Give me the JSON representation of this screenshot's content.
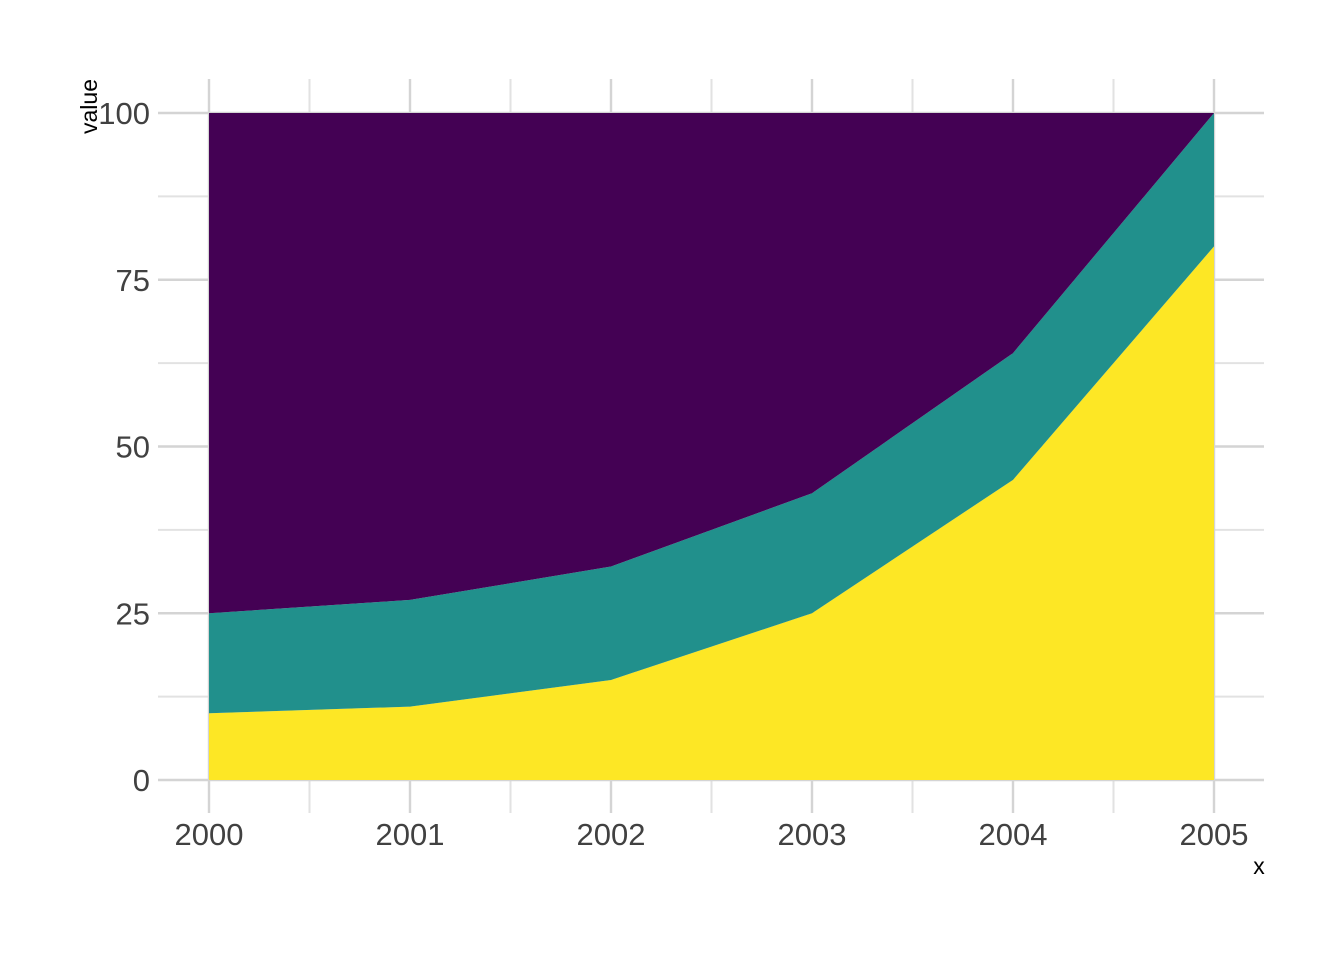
{
  "page": {
    "background": "#ffffff"
  },
  "chart_data": {
    "type": "area",
    "stacking": "stacked",
    "title": "",
    "xlabel": "x",
    "ylabel": "value",
    "x": [
      2000,
      2001,
      2002,
      2003,
      2004,
      2005
    ],
    "series": [
      {
        "name": "bottom-band-yellow",
        "color": "#FDE725",
        "values": [
          10,
          11,
          15,
          25,
          45,
          80
        ]
      },
      {
        "name": "middle-band-teal",
        "color": "#21908C",
        "values": [
          15,
          16,
          17,
          18,
          19,
          20
        ]
      },
      {
        "name": "top-band-purple",
        "color": "#440154",
        "values": [
          75,
          73,
          68,
          57,
          36,
          0
        ]
      }
    ],
    "xlim": [
      2000,
      2005
    ],
    "ylim": [
      0,
      100
    ],
    "x_ticks": [
      2000,
      2001,
      2002,
      2003,
      2004,
      2005
    ],
    "x_tick_labels": [
      "2000",
      "2001",
      "2002",
      "2003",
      "2004",
      "2005"
    ],
    "y_ticks": [
      0,
      25,
      50,
      75,
      100
    ],
    "y_tick_labels": [
      "0",
      "25",
      "50",
      "75",
      "100"
    ],
    "grid": {
      "major": true,
      "minor": true,
      "major_color": "#d4d4d4",
      "minor_color": "#e2e2e2"
    },
    "legend": "none",
    "text_colors": {
      "tick_label": "#414141",
      "axis_title": "#000000"
    }
  }
}
